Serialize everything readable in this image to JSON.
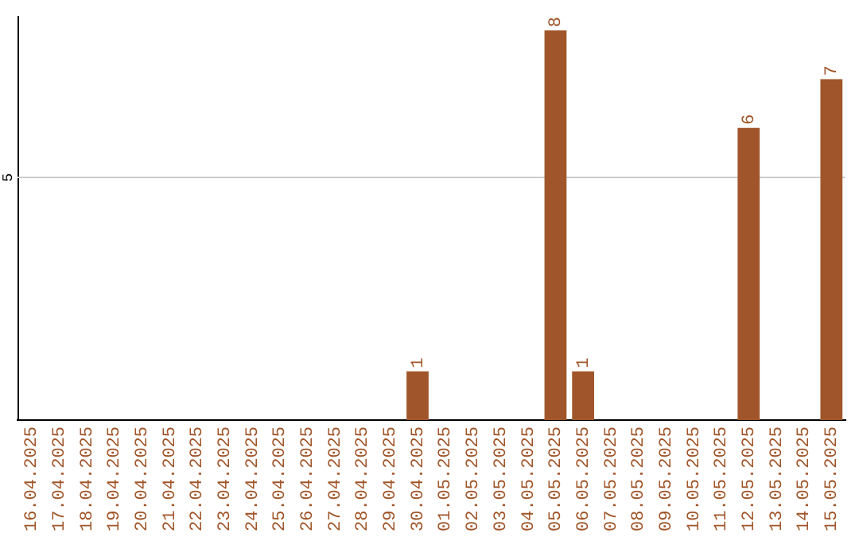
{
  "chart_data": {
    "type": "bar",
    "categories": [
      "16.04.2025",
      "17.04.2025",
      "18.04.2025",
      "19.04.2025",
      "20.04.2025",
      "21.04.2025",
      "22.04.2025",
      "23.04.2025",
      "24.04.2025",
      "25.04.2025",
      "26.04.2025",
      "27.04.2025",
      "28.04.2025",
      "29.04.2025",
      "30.04.2025",
      "01.05.2025",
      "02.05.2025",
      "03.05.2025",
      "04.05.2025",
      "05.05.2025",
      "06.05.2025",
      "07.05.2025",
      "08.05.2025",
      "09.05.2025",
      "10.05.2025",
      "11.05.2025",
      "12.05.2025",
      "13.05.2025",
      "14.05.2025",
      "15.05.2025"
    ],
    "values": [
      null,
      null,
      null,
      null,
      null,
      null,
      null,
      null,
      null,
      null,
      null,
      null,
      null,
      null,
      1,
      null,
      null,
      null,
      null,
      8,
      1,
      null,
      null,
      null,
      null,
      null,
      6,
      null,
      null,
      7
    ],
    "data_labels": true,
    "color": "#a0562a",
    "ylim": [
      0,
      8.3
    ],
    "ref_lines": [
      {
        "axis": "y",
        "value": 5,
        "label": "5",
        "color": "#cccccc"
      }
    ],
    "legend": false
  }
}
